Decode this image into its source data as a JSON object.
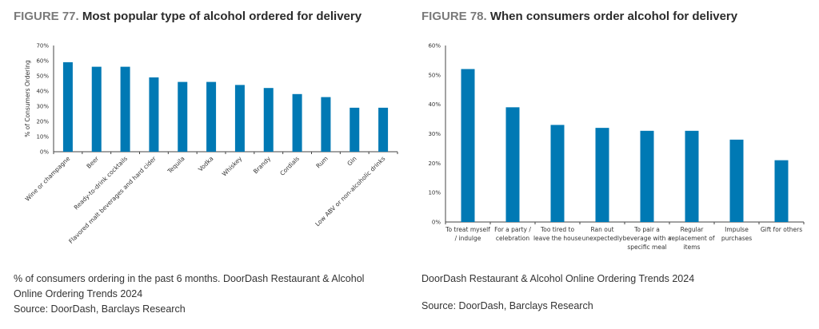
{
  "figures": [
    {
      "number": "FIGURE 77.",
      "title": "Most popular type of alcohol ordered for delivery",
      "note": "% of consumers ordering in the past 6 months. DoorDash Restaurant & Alcohol Online Ordering Trends 2024",
      "source": "Source: DoorDash, Barclays Research"
    },
    {
      "number": "FIGURE 78.",
      "title": "When consumers order alcohol for delivery",
      "note": "DoorDash Restaurant & Alcohol Online Ordering Trends 2024",
      "source": "Source: DoorDash, Barclays Research"
    }
  ],
  "colors": {
    "bar": "#0079B4",
    "axis": "#444444"
  },
  "chart_data": [
    {
      "type": "bar",
      "title": "Most popular type of alcohol ordered for delivery",
      "xlabel": "",
      "ylabel": "% of Consumers Ordering",
      "ylim": [
        0,
        70
      ],
      "yticks": [
        "0%",
        "10%",
        "20%",
        "30%",
        "40%",
        "50%",
        "60%",
        "70%"
      ],
      "tick_step": 10,
      "categories": [
        "Wine or champagne",
        "Beer",
        "Ready-to-drink cocktails",
        "Flavored malt beverages and hard cider",
        "Tequila",
        "Vodka",
        "Whiskey",
        "Brandy",
        "Cordials",
        "Rum",
        "Gin",
        "Low ABV or non-alcoholic drinks"
      ],
      "values": [
        59,
        56,
        56,
        49,
        46,
        46,
        44,
        42,
        38,
        36,
        29,
        29
      ],
      "label_rotation": "-45deg",
      "grid": false
    },
    {
      "type": "bar",
      "title": "When consumers order alcohol for delivery",
      "xlabel": "",
      "ylabel": "",
      "ylim": [
        0,
        60
      ],
      "yticks": [
        "0%",
        "10%",
        "20%",
        "30%",
        "40%",
        "50%",
        "60%"
      ],
      "tick_step": 10,
      "categories": [
        [
          "To treat myself",
          "/ indulge"
        ],
        [
          "For a party /",
          "celebration"
        ],
        [
          "Too tired to",
          "leave the house"
        ],
        [
          "Ran out",
          "unexpectedly"
        ],
        [
          "To pair a",
          "beverage with a",
          "specific meal"
        ],
        [
          "Regular",
          "replacement of",
          "items"
        ],
        [
          "Impulse",
          "purchases"
        ],
        [
          "Gift for others"
        ]
      ],
      "values": [
        52,
        39,
        33,
        32,
        31,
        31,
        28,
        21
      ],
      "grid": false
    }
  ]
}
